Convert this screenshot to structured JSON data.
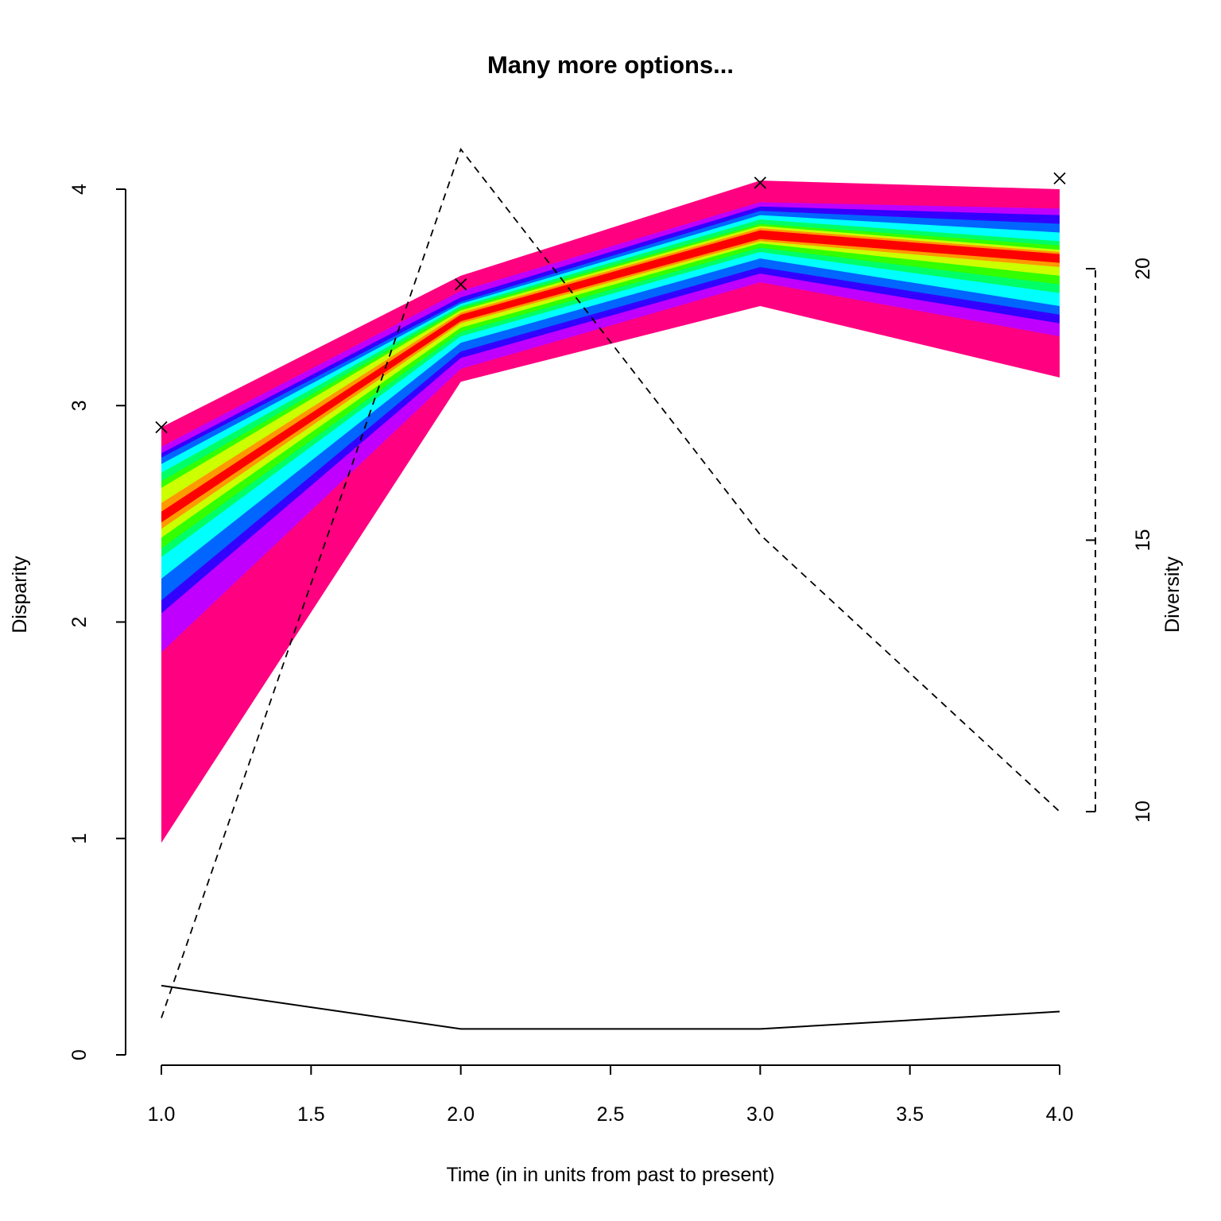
{
  "chart_data": {
    "type": "area",
    "title": "Many more options...",
    "xlabel": "Time (in in units from past to present)",
    "ylabel": "Disparity",
    "y2label": "Diversity",
    "x": [
      1.0,
      2.0,
      3.0,
      4.0
    ],
    "xlim": [
      1.0,
      4.0
    ],
    "ylim": [
      0,
      4
    ],
    "y2lim": [
      10,
      20
    ],
    "x_ticks": [
      {
        "value": 1.0,
        "label": "1.0"
      },
      {
        "value": 1.5,
        "label": "1.5"
      },
      {
        "value": 2.0,
        "label": "2.0"
      },
      {
        "value": 2.5,
        "label": "2.5"
      },
      {
        "value": 3.0,
        "label": "3.0"
      },
      {
        "value": 3.5,
        "label": "3.5"
      },
      {
        "value": 4.0,
        "label": "4.0"
      }
    ],
    "y_ticks": [
      {
        "value": 0,
        "label": "0"
      },
      {
        "value": 1,
        "label": "1"
      },
      {
        "value": 2,
        "label": "2"
      },
      {
        "value": 3,
        "label": "3"
      },
      {
        "value": 4,
        "label": "4"
      }
    ],
    "y2_ticks": [
      {
        "value": 10,
        "label": "10"
      },
      {
        "value": 15,
        "label": "15"
      },
      {
        "value": 20,
        "label": "20"
      }
    ],
    "bands": [
      {
        "color": "#FF0080",
        "lower": [
          0.98,
          3.11,
          3.46,
          3.13
        ],
        "upper": [
          2.9,
          3.6,
          4.04,
          4.0
        ]
      },
      {
        "color": "#BF00FF",
        "lower": [
          1.86,
          3.17,
          3.57,
          3.32
        ],
        "upper": [
          2.81,
          3.53,
          3.94,
          3.91
        ]
      },
      {
        "color": "#3300FF",
        "lower": [
          2.04,
          3.22,
          3.61,
          3.38
        ],
        "upper": [
          2.78,
          3.5,
          3.92,
          3.88
        ]
      },
      {
        "color": "#0066FF",
        "lower": [
          2.1,
          3.25,
          3.64,
          3.42
        ],
        "upper": [
          2.76,
          3.48,
          3.9,
          3.84
        ]
      },
      {
        "color": "#00FFFF",
        "lower": [
          2.2,
          3.29,
          3.68,
          3.46
        ],
        "upper": [
          2.73,
          3.47,
          3.88,
          3.8
        ]
      },
      {
        "color": "#00FF66",
        "lower": [
          2.3,
          3.32,
          3.71,
          3.52
        ],
        "upper": [
          2.69,
          3.46,
          3.86,
          3.76
        ]
      },
      {
        "color": "#33FF00",
        "lower": [
          2.34,
          3.34,
          3.73,
          3.56
        ],
        "upper": [
          2.65,
          3.45,
          3.84,
          3.74
        ]
      },
      {
        "color": "#CCFF00",
        "lower": [
          2.39,
          3.36,
          3.75,
          3.6
        ],
        "upper": [
          2.62,
          3.44,
          3.83,
          3.72
        ]
      },
      {
        "color": "#FF9900",
        "lower": [
          2.43,
          3.38,
          3.76,
          3.64
        ],
        "upper": [
          2.55,
          3.43,
          3.82,
          3.71
        ]
      },
      {
        "color": "#FF0000",
        "lower": [
          2.46,
          3.39,
          3.77,
          3.66
        ],
        "upper": [
          2.51,
          3.42,
          3.81,
          3.7
        ]
      }
    ],
    "observed_points": {
      "marker": "x",
      "values": [
        2.9,
        3.56,
        4.03,
        4.05
      ]
    },
    "diversity_line": {
      "style": "dashed",
      "values": [
        6.2,
        22.2,
        15.1,
        10.0
      ]
    },
    "bottom_line": {
      "style": "solid",
      "values": [
        0.32,
        0.12,
        0.12,
        0.2
      ]
    },
    "grid": false,
    "legend": "none"
  }
}
